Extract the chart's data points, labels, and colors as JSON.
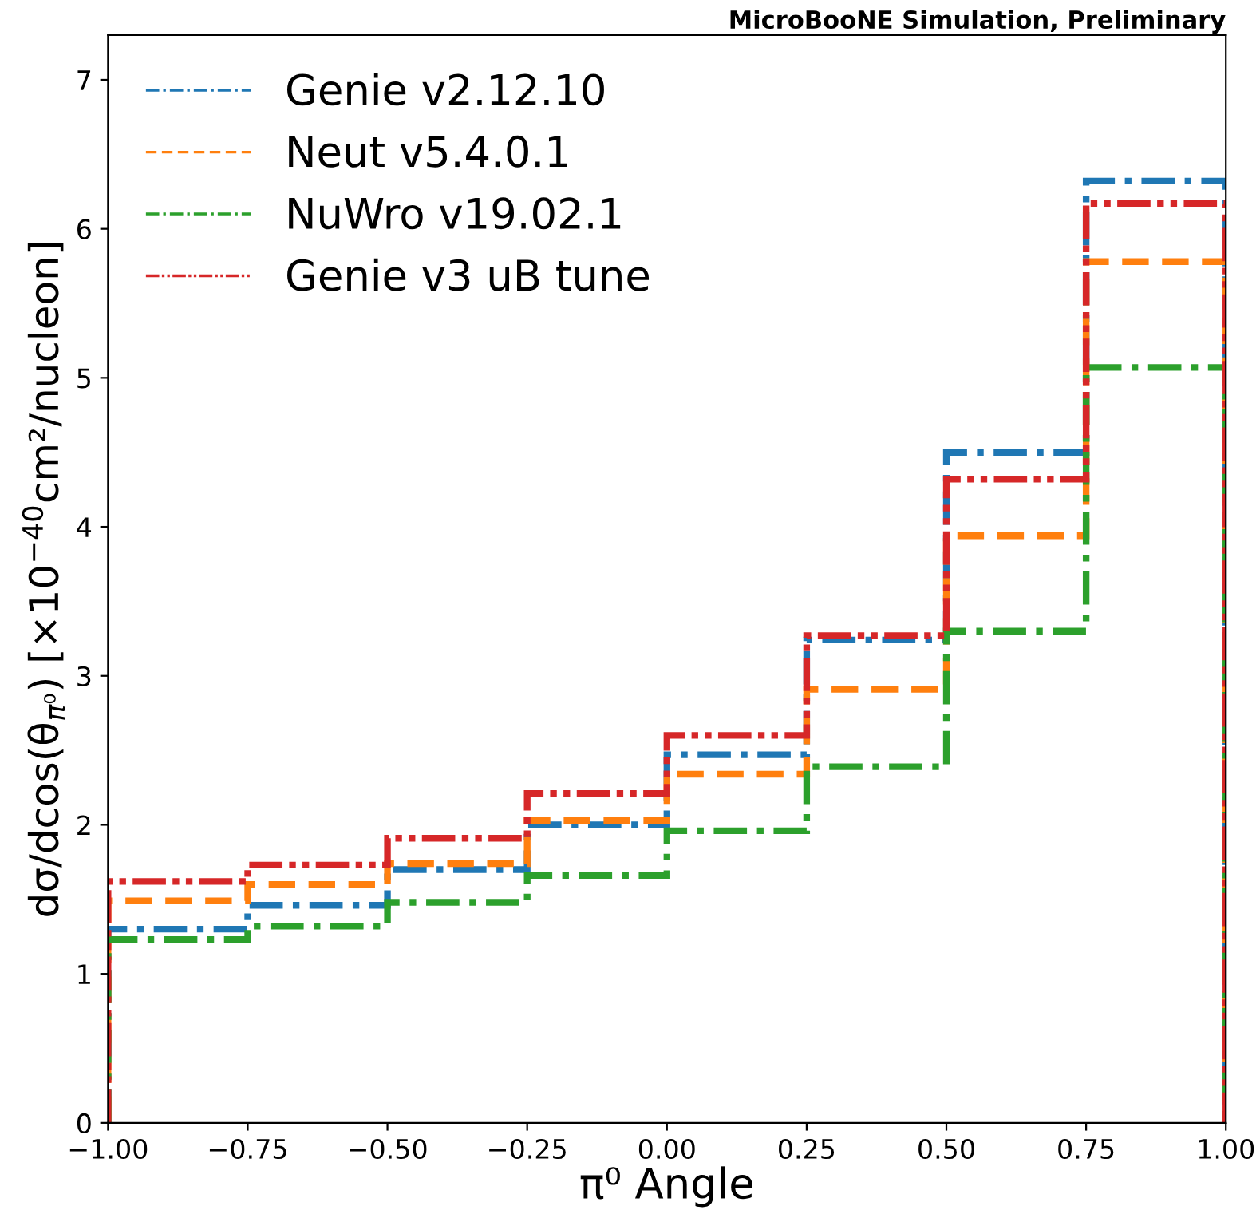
{
  "chart_data": {
    "type": "histogram",
    "title": "MicroBooNE Simulation, Preliminary",
    "xlabel": "π⁰ Angle",
    "ylabel": "dσ/dcos(θ$_{π⁰}$) [×10$^{−40}$cm²/nucleon]",
    "bins": [
      -1.0,
      -0.75,
      -0.5,
      -0.25,
      0.0,
      0.25,
      0.5,
      0.75,
      1.0
    ],
    "series": [
      {
        "name": "Genie v2.12.10",
        "color": "#1f77b4",
        "line_style": "dashdot",
        "values": [
          1.3,
          1.46,
          1.7,
          2.0,
          2.47,
          3.24,
          4.5,
          6.32
        ]
      },
      {
        "name": "Neut v5.4.0.1",
        "color": "#ff7f0e",
        "line_style": "dashed",
        "values": [
          1.49,
          1.6,
          1.74,
          2.03,
          2.34,
          2.91,
          3.94,
          5.78
        ]
      },
      {
        "name": "NuWro v19.02.1",
        "color": "#2ca02c",
        "line_style": "dashdot",
        "values": [
          1.23,
          1.32,
          1.48,
          1.66,
          1.96,
          2.39,
          3.3,
          5.07
        ]
      },
      {
        "name": "Genie v3 uB tune",
        "color": "#d62728",
        "line_style": "dashdotdot",
        "values": [
          1.62,
          1.73,
          1.91,
          2.21,
          2.6,
          3.27,
          4.32,
          6.17
        ]
      }
    ],
    "xlim": [
      -1.0,
      1.0
    ],
    "xticks": [
      {
        "value": -1.0,
        "label": "−1.00"
      },
      {
        "value": -0.75,
        "label": "−0.75"
      },
      {
        "value": -0.5,
        "label": "−0.50"
      },
      {
        "value": -0.25,
        "label": "−0.25"
      },
      {
        "value": 0.0,
        "label": "0.00"
      },
      {
        "value": 0.25,
        "label": "0.25"
      },
      {
        "value": 0.5,
        "label": "0.50"
      },
      {
        "value": 0.75,
        "label": "0.75"
      },
      {
        "value": 1.0,
        "label": "1.00"
      }
    ],
    "ylim": [
      0,
      7.3
    ],
    "yticks": [
      0,
      1,
      2,
      3,
      4,
      5,
      6,
      7
    ],
    "legend": "top left",
    "grid": false
  }
}
